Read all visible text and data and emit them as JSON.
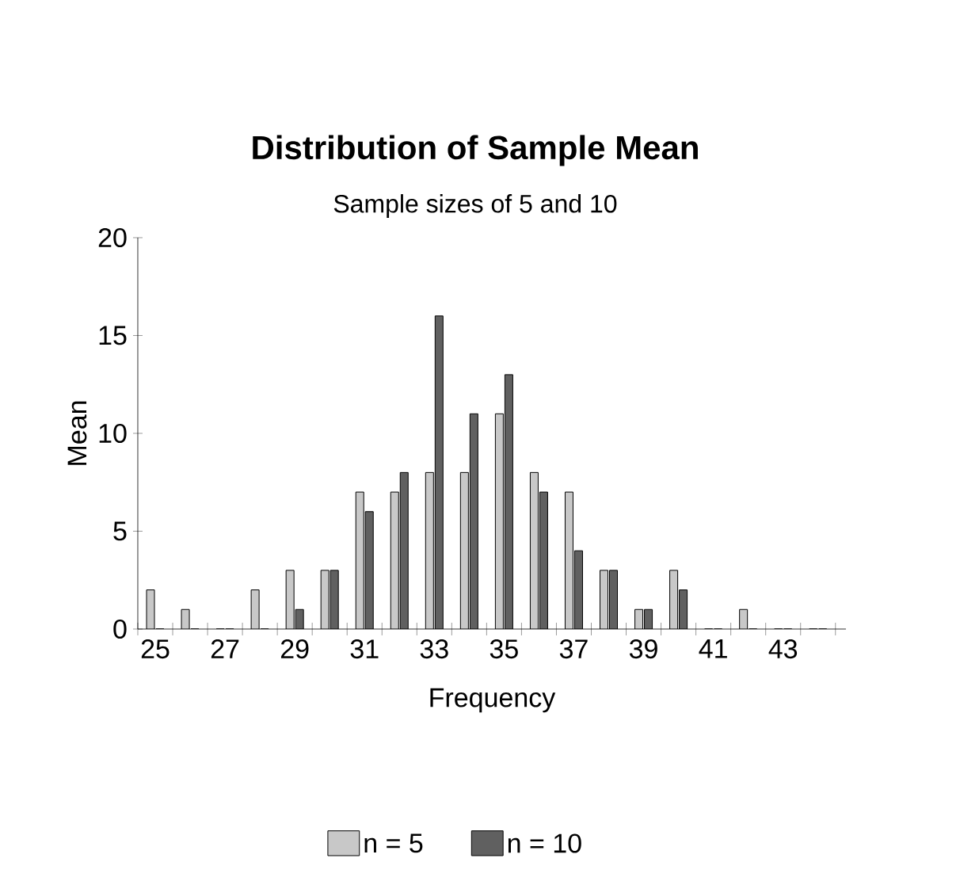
{
  "chart_data": {
    "type": "bar",
    "title": "Distribution of Sample Mean",
    "subtitle": "Sample sizes of 5 and 10",
    "xlabel": "Frequency",
    "ylabel": "Mean",
    "categories": [
      "25",
      null,
      "27",
      null,
      "29",
      null,
      "31",
      null,
      "33",
      null,
      "35",
      null,
      "37",
      null,
      "39",
      null,
      "41",
      null,
      "43",
      null
    ],
    "series": [
      {
        "name": "n = 5",
        "color": "#c8c8c8",
        "values": [
          2,
          1,
          0,
          2,
          3,
          3,
          7,
          7,
          8,
          8,
          11,
          8,
          7,
          3,
          1,
          3,
          0,
          1,
          0,
          0
        ]
      },
      {
        "name": "n = 10",
        "color": "#606060",
        "values": [
          0,
          0,
          0,
          0,
          1,
          3,
          6,
          8,
          16,
          11,
          13,
          7,
          4,
          3,
          1,
          2,
          0,
          0,
          0,
          0
        ]
      }
    ],
    "ylim": [
      0,
      20
    ],
    "yticks": [
      0,
      5,
      10,
      15,
      20
    ],
    "legend": "bottom"
  }
}
